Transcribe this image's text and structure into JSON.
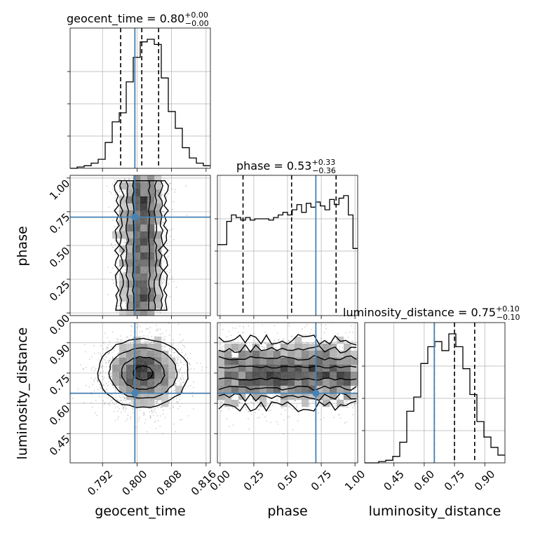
{
  "chart_data": {
    "type": "corner",
    "colors": {
      "truth": "#4682b4",
      "hist": "#000000",
      "grid": "#b0b0b0",
      "points": "#000000"
    },
    "parameters": [
      {
        "name": "geocent_time",
        "axis_label": "geocent_time",
        "title_label": "geocent_time = 0.80",
        "title_sup": "+0.00",
        "title_sub": "−0.00",
        "range": [
          0.7845,
          0.817
        ],
        "ticks": [
          0.792,
          0.8,
          0.808,
          0.816
        ],
        "tick_labels": [
          "0.792",
          "0.800",
          "0.808",
          "0.816"
        ],
        "truth": 0.7995,
        "quantiles": [
          0.7962,
          0.8011,
          0.805
        ],
        "hist": [
          0.0,
          0.01,
          0.02,
          0.04,
          0.07,
          0.2,
          0.36,
          0.43,
          0.67,
          0.86,
          0.98,
          1.0,
          0.96,
          0.7,
          0.44,
          0.31,
          0.16,
          0.08,
          0.04,
          0.02
        ]
      },
      {
        "name": "phase",
        "axis_label": "phase",
        "title_label": "phase = 0.53",
        "title_sup": "+0.33",
        "title_sub": "−0.36",
        "range": [
          -0.02,
          1.02
        ],
        "ticks": [
          0.0,
          0.25,
          0.5,
          0.75,
          1.0
        ],
        "tick_labels": [
          "0.00",
          "0.25",
          "0.50",
          "0.75",
          "1.00"
        ],
        "truth": 0.71,
        "quantiles": [
          0.17,
          0.53,
          0.86
        ],
        "hist": [
          0.55,
          0.55,
          0.73,
          0.78,
          0.76,
          0.74,
          0.76,
          0.74,
          0.75,
          0.75,
          0.75,
          0.74,
          0.76,
          0.78,
          0.8,
          0.78,
          0.82,
          0.86,
          0.8,
          0.87,
          0.84,
          0.88,
          0.85,
          0.82,
          0.9,
          0.86,
          0.91,
          0.93,
          0.78,
          0.52
        ]
      },
      {
        "name": "luminosity_distance",
        "axis_label": "luminosity_distance",
        "title_label": "luminosity_distance = 0.75",
        "title_sup": "+0.10",
        "title_sub": "−0.10",
        "range": [
          0.305,
          1.0
        ],
        "ticks": [
          0.45,
          0.6,
          0.75,
          0.9
        ],
        "tick_labels": [
          "0.45",
          "0.60",
          "0.75",
          "0.90"
        ],
        "truth": 0.65,
        "quantiles": [
          0.65,
          0.75,
          0.85
        ],
        "hist": [
          0.0,
          0.0,
          0.01,
          0.02,
          0.05,
          0.16,
          0.4,
          0.51,
          0.77,
          0.9,
          0.94,
          0.87,
          1.0,
          0.9,
          0.73,
          0.53,
          0.32,
          0.2,
          0.12,
          0.06
        ]
      }
    ],
    "contours": {
      "phase_vs_geocent_time": {
        "level_half_widths": [
          0.0058,
          0.0045,
          0.0033,
          0.0019
        ],
        "center": 0.801
      },
      "luminosity_distance_vs_geocent_time": {
        "center": [
          0.8014,
          0.75
        ],
        "level_radii": [
          [
            0.0105,
            0.17
          ],
          [
            0.0078,
            0.125
          ],
          [
            0.005,
            0.08
          ],
          [
            0.0022,
            0.035
          ]
        ]
      },
      "luminosity_distance_vs_phase": {
        "center_y": 0.75,
        "level_half_heights": [
          0.165,
          0.12,
          0.075,
          0.03
        ]
      }
    },
    "grid": true
  }
}
